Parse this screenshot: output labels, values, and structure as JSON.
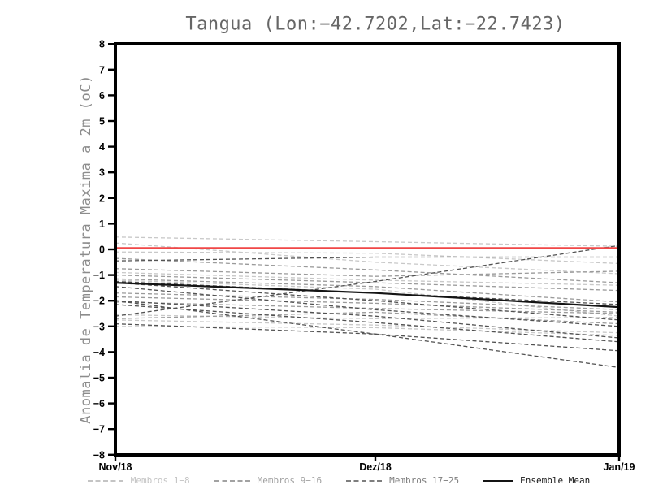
{
  "chart_data": {
    "type": "line",
    "title": "Tangua (Lon:−42.7202,Lat:−22.7423)",
    "ylabel": "Anomalia de Temperatura Maxima a 2m (oC)",
    "xlabel": "",
    "x_categories": [
      "Nov/18",
      "Dez/18",
      "Jan/19"
    ],
    "ylim": [
      -8,
      8
    ],
    "y_tick_labels": [
      "8",
      "7",
      "6",
      "5",
      "4",
      "3",
      "2",
      "1",
      "0",
      "−1",
      "−2",
      "−3",
      "−4",
      "−5",
      "−6",
      "−7",
      "−8"
    ],
    "grid": false,
    "legend_position": "bottom",
    "zero_line": {
      "value": 0.05,
      "color": "#f04747",
      "style": "solid"
    },
    "groups": [
      {
        "name": "Membros 1-8",
        "color": "#c8c8c8",
        "dash": true,
        "series": [
          [
            0.48,
            0.3,
            0.12
          ],
          [
            0.25,
            -0.5,
            -0.95
          ],
          [
            -0.1,
            -0.15,
            -0.55
          ],
          [
            -0.9,
            -1.2,
            -1.4
          ],
          [
            -1.2,
            -1.55,
            -2.6
          ],
          [
            -2.55,
            -2.7,
            -2.65
          ],
          [
            -2.75,
            -2.95,
            -3.25
          ],
          [
            -3.0,
            -3.05,
            -3.35
          ]
        ]
      },
      {
        "name": "Membros 9-16",
        "color": "#9a9a9a",
        "dash": true,
        "series": [
          [
            -0.35,
            -0.8,
            -1.3
          ],
          [
            -0.75,
            -1.05,
            -0.85
          ],
          [
            -1.0,
            -1.3,
            -1.6
          ],
          [
            -1.15,
            -1.45,
            -2.05
          ],
          [
            -1.7,
            -1.95,
            -2.35
          ],
          [
            -1.85,
            -2.1,
            -2.45
          ],
          [
            -2.05,
            -2.3,
            -2.5
          ],
          [
            -2.7,
            -2.45,
            -2.9
          ]
        ]
      },
      {
        "name": "Membros 17-25",
        "color": "#525252",
        "dash": true,
        "series": [
          [
            -0.45,
            -0.3,
            -0.3
          ],
          [
            -2.6,
            -1.25,
            0.15
          ],
          [
            -1.25,
            -1.7,
            -2.15
          ],
          [
            -1.3,
            -2.0,
            -2.75
          ],
          [
            -1.45,
            -2.35,
            -3.0
          ],
          [
            -2.0,
            -2.6,
            -3.45
          ],
          [
            -2.15,
            -2.85,
            -3.6
          ],
          [
            -2.0,
            -3.3,
            -4.6
          ],
          [
            -2.9,
            -3.3,
            -3.95
          ]
        ]
      },
      {
        "name": "Ensemble Mean",
        "color": "#141414",
        "dash": false,
        "series": [
          [
            -1.3,
            -1.7,
            -2.25
          ]
        ]
      }
    ],
    "legend": [
      {
        "label": "Membros 1−8",
        "color": "#c4c4c4",
        "dash": true
      },
      {
        "label": "Membros 9−16",
        "color": "#a2a2a2",
        "dash": true
      },
      {
        "label": "Membros 17−25",
        "color": "#7e7e7e",
        "dash": true
      },
      {
        "label": "Ensemble Mean",
        "color": "#141414",
        "dash": false
      }
    ]
  }
}
